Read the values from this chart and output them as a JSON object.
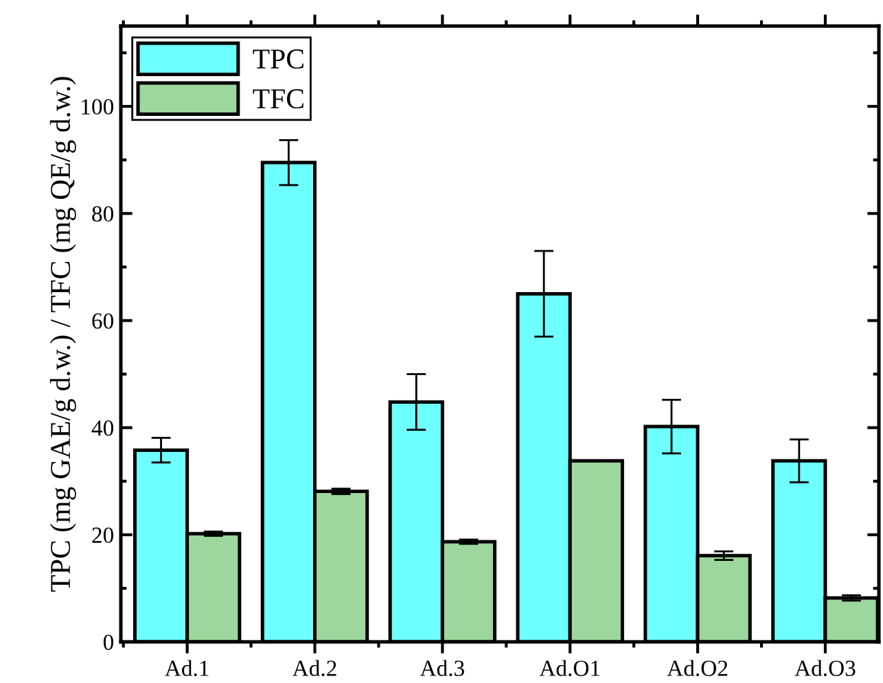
{
  "chart_data": {
    "type": "bar",
    "ylabel": "TPC (mg GAE/g d.w.) / TFC (mg QE/g d.w.)",
    "categories": [
      "Ad.1",
      "Ad.2",
      "Ad.3",
      "Ad.O1",
      "Ad.O2",
      "Ad.O3"
    ],
    "series": [
      {
        "name": "TPC",
        "color": "#6effff",
        "values": [
          35.8,
          89.5,
          44.8,
          65.0,
          40.2,
          33.8
        ],
        "errors": [
          2.3,
          4.2,
          5.2,
          8.0,
          5.0,
          4.0
        ]
      },
      {
        "name": "TFC",
        "color": "#9ed79e",
        "values": [
          20.2,
          28.1,
          18.7,
          33.8,
          16.1,
          8.2
        ],
        "errors": [
          0.4,
          0.5,
          0.4,
          null,
          0.8,
          0.5
        ]
      }
    ],
    "ylim": [
      0,
      115
    ],
    "yticks": [
      0,
      20,
      40,
      60,
      80,
      100
    ],
    "grid": false,
    "legend": "top left"
  }
}
